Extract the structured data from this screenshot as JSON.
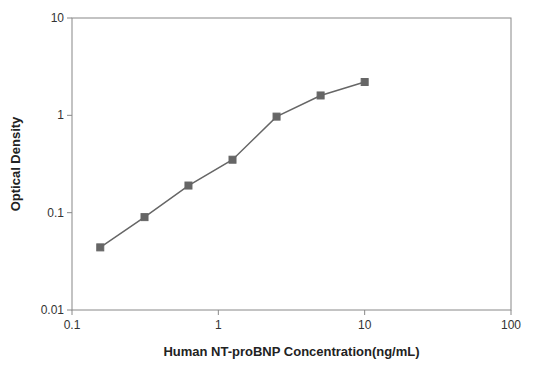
{
  "chart_data": {
    "type": "line",
    "x": [
      0.156,
      0.313,
      0.625,
      1.25,
      2.5,
      5.0,
      10.0
    ],
    "values": [
      0.044,
      0.09,
      0.19,
      0.35,
      0.97,
      1.6,
      2.2
    ],
    "xlabel": "Human NT-proBNP Concentration(ng/mL)",
    "ylabel": "Optical Density",
    "xlim": [
      0.1,
      100
    ],
    "ylim": [
      0.01,
      10
    ],
    "xticks": [
      0.1,
      1,
      10,
      100
    ],
    "yticks": [
      0.01,
      0.1,
      1,
      10
    ],
    "log": true,
    "grid": false,
    "color": "#666666",
    "marker": "square"
  }
}
